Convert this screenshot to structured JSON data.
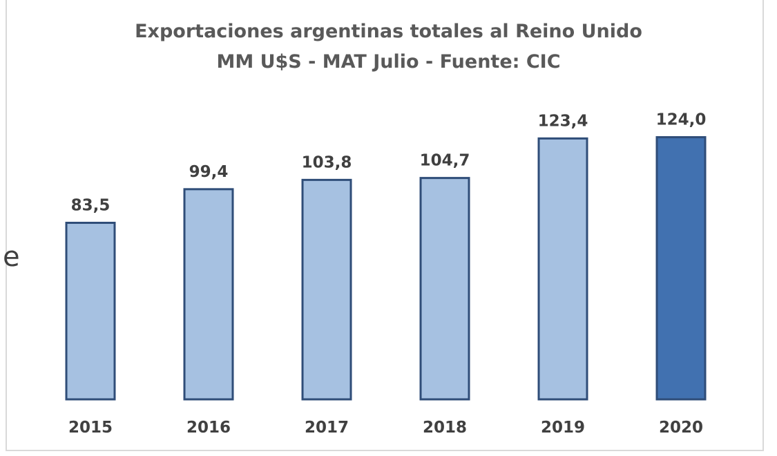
{
  "chart_data": {
    "type": "bar",
    "title": "Exportaciones argentinas totales al Reino Unido",
    "subtitle": "MM U$S - MAT Julio - Fuente: CIC",
    "categories": [
      "2015",
      "2016",
      "2017",
      "2018",
      "2019",
      "2020"
    ],
    "values": [
      83.5,
      99.4,
      103.8,
      104.7,
      123.4,
      124.0
    ],
    "data_labels": [
      "83,5",
      "99,4",
      "103,8",
      "104,7",
      "123,4",
      "124,0"
    ],
    "ylim": [
      0,
      130
    ],
    "grid": false,
    "legend": "none",
    "colors": {
      "bar_fill": "#a6c1e1",
      "highlight_fill": "#4171b0",
      "bar_stroke": "#2f4d78",
      "highlight_index": 5
    }
  }
}
